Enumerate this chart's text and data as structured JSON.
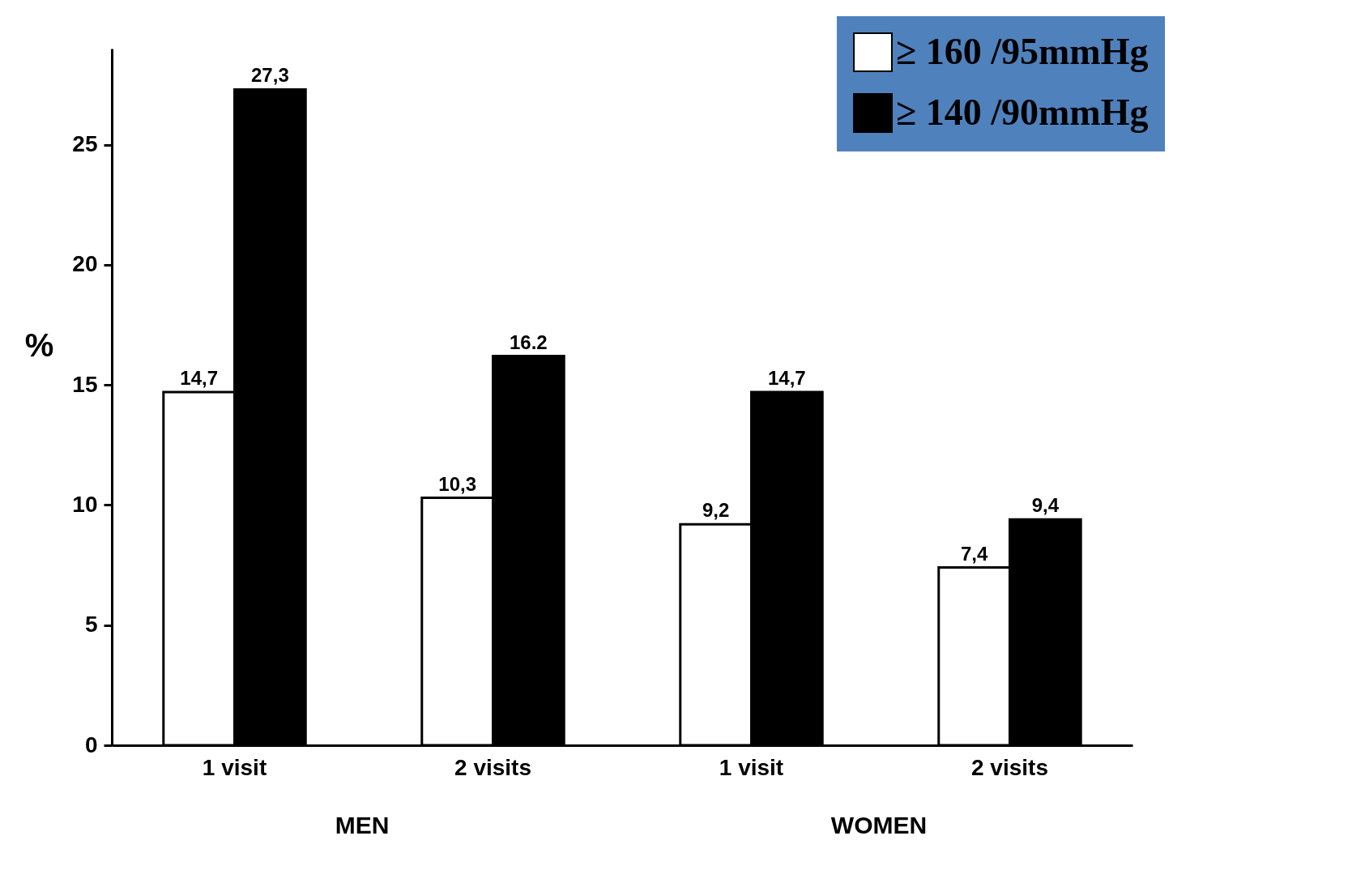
{
  "chart_data": {
    "type": "bar",
    "ylabel": "%",
    "categories": [
      "1 visit",
      "2 visits",
      "1 visit",
      "2 visits"
    ],
    "series": [
      {
        "name": "≥ 160 /95mmHg",
        "color": "#ffffff",
        "values": [
          14.7,
          10.3,
          9.2,
          7.4
        ],
        "value_labels": [
          "14,7",
          "10,3",
          "9,2",
          "7,4"
        ]
      },
      {
        "name": "≥ 140 /90mmHg",
        "color": "#000000",
        "values": [
          27.3,
          16.2,
          14.7,
          9.4
        ],
        "value_labels": [
          "27,3",
          "16.2",
          "14,7",
          "9,4"
        ]
      }
    ],
    "ylim": [
      0,
      29
    ],
    "yticks": [
      0,
      5,
      10,
      15,
      20,
      25
    ],
    "grid": false,
    "legend": "top right",
    "annotations": [
      "MEN",
      "WOMEN"
    ]
  }
}
